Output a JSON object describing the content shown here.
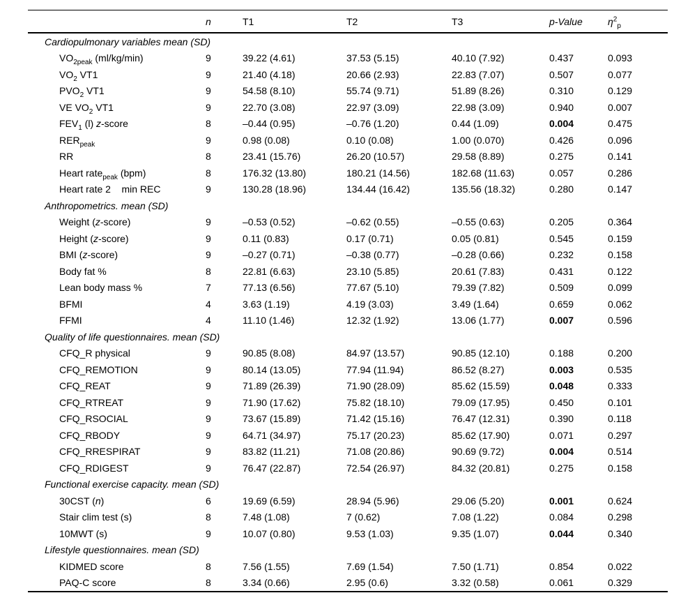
{
  "table": {
    "header": {
      "label": "",
      "n": "n",
      "t1": "T1",
      "t2": "T2",
      "t3": "T3",
      "p_value": "p-Value",
      "eta_symbol": "η",
      "eta_sup": "2",
      "eta_sub": "p"
    },
    "sections": [
      {
        "title": "Cardiopulmonary variables mean (SD)",
        "rows": [
          {
            "label": [
              {
                "t": "VO"
              },
              {
                "t": "2peak",
                "s": "sub"
              },
              {
                "t": " (ml/kg/min)"
              }
            ],
            "n": "9",
            "t1": "39.22 (4.61)",
            "t2": "37.53 (5.15)",
            "t3": "40.10 (7.92)",
            "p": "0.437",
            "pb": false,
            "eta": "0.093"
          },
          {
            "label": [
              {
                "t": "VO"
              },
              {
                "t": "2",
                "s": "sub"
              },
              {
                "t": " VT1"
              }
            ],
            "n": "9",
            "t1": "21.40 (4.18)",
            "t2": "20.66 (2.93)",
            "t3": "22.83 (7.07)",
            "p": "0.507",
            "pb": false,
            "eta": "0.077"
          },
          {
            "label": [
              {
                "t": "PVO"
              },
              {
                "t": "2",
                "s": "sub"
              },
              {
                "t": " VT1"
              }
            ],
            "n": "9",
            "t1": "54.58 (8.10)",
            "t2": "55.74 (9.71)",
            "t3": "51.89 (8.26)",
            "p": "0.310",
            "pb": false,
            "eta": "0.129"
          },
          {
            "label": [
              {
                "t": "VE VO"
              },
              {
                "t": "2",
                "s": "sub"
              },
              {
                "t": " VT1"
              }
            ],
            "n": "9",
            "t1": "22.70 (3.08)",
            "t2": "22.97 (3.09)",
            "t3": "22.98 (3.09)",
            "p": "0.940",
            "pb": false,
            "eta": "0.007"
          },
          {
            "label": [
              {
                "t": "FEV"
              },
              {
                "t": "1",
                "s": "sub"
              },
              {
                "t": " (l) "
              },
              {
                "t": "z",
                "s": "i"
              },
              {
                "t": "-score"
              }
            ],
            "n": "8",
            "t1": "–0.44 (0.95)",
            "t2": "–0.76 (1.20)",
            "t3": "0.44 (1.09)",
            "p": "0.004",
            "pb": true,
            "eta": "0.475"
          },
          {
            "label": [
              {
                "t": "RER"
              },
              {
                "t": "peak",
                "s": "sub"
              }
            ],
            "n": "9",
            "t1": "0.98 (0.08)",
            "t2": "0.10 (0.08)",
            "t3": "1.00 (0.070)",
            "p": "0.426",
            "pb": false,
            "eta": "0.096"
          },
          {
            "label": [
              {
                "t": "RR"
              }
            ],
            "n": "8",
            "t1": "23.41 (15.76)",
            "t2": "26.20 (10.57)",
            "t3": "29.58 (8.89)",
            "p": "0.275",
            "pb": false,
            "eta": "0.141"
          },
          {
            "label": [
              {
                "t": "Heart rate"
              },
              {
                "t": "peak",
                "s": "sub"
              },
              {
                "t": " (bpm)"
              }
            ],
            "n": "8",
            "t1": "176.32 (13.80)",
            "t2": "180.21 (14.56)",
            "t3": "182.68 (11.63)",
            "p": "0.057",
            "pb": false,
            "eta": "0.286"
          },
          {
            "label": [
              {
                "t": "Heart rate 2    min REC"
              }
            ],
            "n": "9",
            "t1": "130.28 (18.96)",
            "t2": "134.44 (16.42)",
            "t3": "135.56 (18.32)",
            "p": "0.280",
            "pb": false,
            "eta": "0.147"
          }
        ]
      },
      {
        "title": "Anthropometrics. mean (SD)",
        "rows": [
          {
            "label": [
              {
                "t": "Weight ("
              },
              {
                "t": "z",
                "s": "i"
              },
              {
                "t": "-score)"
              }
            ],
            "n": "9",
            "t1": "–0.53 (0.52)",
            "t2": "–0.62 (0.55)",
            "t3": "–0.55 (0.63)",
            "p": "0.205",
            "pb": false,
            "eta": "0.364"
          },
          {
            "label": [
              {
                "t": "Height ("
              },
              {
                "t": "z",
                "s": "i"
              },
              {
                "t": "-score)"
              }
            ],
            "n": "9",
            "t1": "0.11 (0.83)",
            "t2": "0.17 (0.71)",
            "t3": "0.05 (0.81)",
            "p": "0.545",
            "pb": false,
            "eta": "0.159"
          },
          {
            "label": [
              {
                "t": "BMI ("
              },
              {
                "t": "z",
                "s": "i"
              },
              {
                "t": "-score)"
              }
            ],
            "n": "9",
            "t1": "–0.27 (0.71)",
            "t2": "–0.38 (0.77)",
            "t3": "–0.28 (0.66)",
            "p": "0.232",
            "pb": false,
            "eta": "0.158"
          },
          {
            "label": [
              {
                "t": "Body fat %"
              }
            ],
            "n": "8",
            "t1": "22.81 (6.63)",
            "t2": "23.10 (5.85)",
            "t3": "20.61 (7.83)",
            "p": "0.431",
            "pb": false,
            "eta": "0.122"
          },
          {
            "label": [
              {
                "t": "Lean body mass %"
              }
            ],
            "n": "7",
            "t1": "77.13 (6.56)",
            "t2": "77.67 (5.10)",
            "t3": "79.39 (7.82)",
            "p": "0.509",
            "pb": false,
            "eta": "0.099"
          },
          {
            "label": [
              {
                "t": "BFMI"
              }
            ],
            "n": "4",
            "t1": "3.63 (1.19)",
            "t2": "4.19 (3.03)",
            "t3": "3.49 (1.64)",
            "p": "0.659",
            "pb": false,
            "eta": "0.062"
          },
          {
            "label": [
              {
                "t": "FFMI"
              }
            ],
            "n": "4",
            "t1": "11.10 (1.46)",
            "t2": "12.32 (1.92)",
            "t3": "13.06 (1.77)",
            "p": "0.007",
            "pb": true,
            "eta": "0.596"
          }
        ]
      },
      {
        "title": "Quality of life questionnaires. mean (SD)",
        "rows": [
          {
            "label": [
              {
                "t": "CFQ_R physical"
              }
            ],
            "n": "9",
            "t1": "90.85 (8.08)",
            "t2": "84.97 (13.57)",
            "t3": "90.85 (12.10)",
            "p": "0.188",
            "pb": false,
            "eta": "0.200"
          },
          {
            "label": [
              {
                "t": "CFQ_REMOTION"
              }
            ],
            "n": "9",
            "t1": "80.14 (13.05)",
            "t2": "77.94 (11.94)",
            "t3": "86.52 (8.27)",
            "p": "0.003",
            "pb": true,
            "eta": "0.535"
          },
          {
            "label": [
              {
                "t": "CFQ_REAT"
              }
            ],
            "n": "9",
            "t1": "71.89 (26.39)",
            "t2": "71.90 (28.09)",
            "t3": "85.62 (15.59)",
            "p": "0.048",
            "pb": true,
            "eta": "0.333"
          },
          {
            "label": [
              {
                "t": "CFQ_RTREAT"
              }
            ],
            "n": "9",
            "t1": "71.90 (17.62)",
            "t2": "75.82 (18.10)",
            "t3": "79.09 (17.95)",
            "p": "0.450",
            "pb": false,
            "eta": "0.101"
          },
          {
            "label": [
              {
                "t": "CFQ_RSOCIAL"
              }
            ],
            "n": "9",
            "t1": "73.67 (15.89)",
            "t2": "71.42 (15.16)",
            "t3": "76.47 (12.31)",
            "p": "0.390",
            "pb": false,
            "eta": "0.118"
          },
          {
            "label": [
              {
                "t": "CFQ_RBODY"
              }
            ],
            "n": "9",
            "t1": "64.71 (34.97)",
            "t2": "75.17 (20.23)",
            "t3": "85.62 (17.90)",
            "p": "0.071",
            "pb": false,
            "eta": "0.297"
          },
          {
            "label": [
              {
                "t": "CFQ_RRESPIRAT"
              }
            ],
            "n": "9",
            "t1": "83.82 (11.21)",
            "t2": "71.08 (20.86)",
            "t3": "90.69 (9.72)",
            "p": "0.004",
            "pb": true,
            "eta": "0.514"
          },
          {
            "label": [
              {
                "t": "CFQ_RDIGEST"
              }
            ],
            "n": "9",
            "t1": "76.47 (22.87)",
            "t2": "72.54 (26.97)",
            "t3": "84.32 (20.81)",
            "p": "0.275",
            "pb": false,
            "eta": "0.158"
          }
        ]
      },
      {
        "title": "Functional exercise capacity. mean (SD)",
        "rows": [
          {
            "label": [
              {
                "t": "30CST ("
              },
              {
                "t": "n",
                "s": "i"
              },
              {
                "t": ")"
              }
            ],
            "n": "6",
            "t1": "19.69 (6.59)",
            "t2": "28.94 (5.96)",
            "t3": "29.06 (5.20)",
            "p": "0.001",
            "pb": true,
            "eta": "0.624"
          },
          {
            "label": [
              {
                "t": "Stair clim test (s)"
              }
            ],
            "n": "8",
            "t1": "7.48 (1.08)",
            "t2": "7 (0.62)",
            "t3": "7.08 (1.22)",
            "p": "0.084",
            "pb": false,
            "eta": "0.298"
          },
          {
            "label": [
              {
                "t": "10MWT (s)"
              }
            ],
            "n": "9",
            "t1": "10.07 (0.80)",
            "t2": "9.53 (1.03)",
            "t3": "9.35 (1.07)",
            "p": "0.044",
            "pb": true,
            "eta": "0.340"
          }
        ]
      },
      {
        "title": "Lifestyle questionnaires. mean (SD)",
        "rows": [
          {
            "label": [
              {
                "t": "KIDMED score"
              }
            ],
            "n": "8",
            "t1": "7.56 (1.55)",
            "t2": "7.69 (1.54)",
            "t3": "7.50 (1.71)",
            "p": "0.854",
            "pb": false,
            "eta": "0.022"
          },
          {
            "label": [
              {
                "t": "PAQ-C score"
              }
            ],
            "n": "8",
            "t1": "3.34 (0.66)",
            "t2": "2.95 (0.6)",
            "t3": "3.32 (0.58)",
            "p": "0.061",
            "pb": false,
            "eta": "0.329"
          }
        ]
      }
    ]
  }
}
